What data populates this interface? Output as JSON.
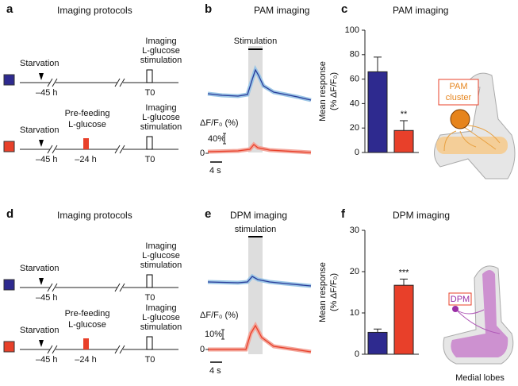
{
  "chart_data": [
    {
      "type": "bar",
      "panel": "c",
      "title": "PAM imaging",
      "y_label": "Mean response",
      "y_label_unit": "(% ΔF/F₀)",
      "values": [
        66,
        18
      ],
      "errors": [
        12,
        8
      ],
      "colors": [
        "#2e2a8f",
        "#e8402a"
      ],
      "significance": [
        null,
        "**"
      ],
      "ylim": [
        0,
        100
      ],
      "yticks": [
        0,
        20,
        40,
        60,
        80,
        100
      ]
    },
    {
      "type": "bar",
      "panel": "f",
      "title": "DPM imaging",
      "y_label": "Mean response",
      "y_label_unit": "(% ΔF/F₀)",
      "values": [
        5.3,
        16.7
      ],
      "errors": [
        0.8,
        1.5
      ],
      "colors": [
        "#2e2a8f",
        "#e8402a"
      ],
      "significance": [
        null,
        "***"
      ],
      "ylim": [
        0,
        30
      ],
      "yticks": [
        0,
        10,
        20,
        30
      ]
    }
  ],
  "protocols": [
    {
      "panel": "a",
      "title": "Imaging protocols",
      "starvation": "Starvation",
      "start": "–45 h",
      "imaging": [
        "Imaging",
        "L-glucose",
        "stimulation"
      ],
      "t0": "T0",
      "prefeeding": [
        "Pre-feeding",
        "L-glucose"
      ],
      "prefeed_time": "–24 h"
    },
    {
      "panel": "d",
      "title": "Imaging protocols",
      "starvation": "Starvation",
      "start": "–45 h",
      "imaging": [
        "Imaging",
        "L-glucose",
        "stimulation"
      ],
      "t0": "T0",
      "prefeeding": [
        "Pre-feeding",
        "L-glucose"
      ],
      "prefeed_time": "–24 h"
    }
  ],
  "traces": [
    {
      "panel": "b",
      "title": "PAM imaging",
      "stim": "Stimulation",
      "scale_label": "ΔF/F₀ (%)",
      "scale_value": "40%",
      "zero": "0",
      "time": "4 s"
    },
    {
      "panel": "e",
      "title": "DPM imaging",
      "stim": "stimulation",
      "scale_label": "ΔF/F₀ (%)",
      "scale_value": "10%",
      "zero": "0",
      "time": "4 s"
    }
  ],
  "diagrams": {
    "pam": [
      "PAM",
      "cluster"
    ],
    "dpm": "DPM",
    "lobes": "Medial lobes"
  }
}
